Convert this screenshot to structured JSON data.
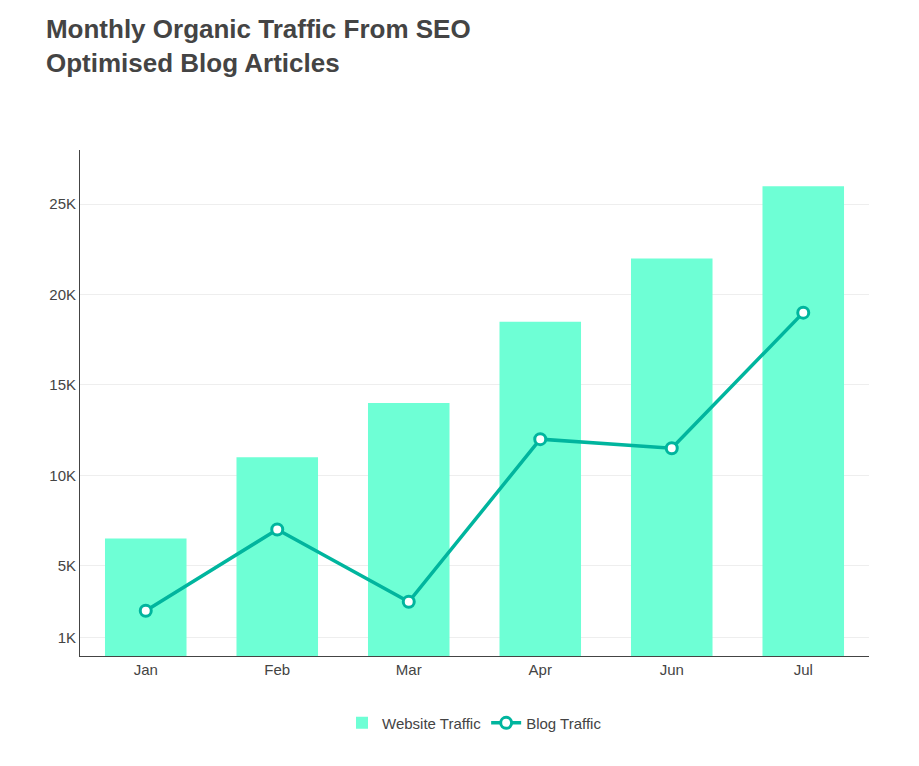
{
  "chart_data": {
    "type": "bar",
    "title": "Monthly Organic Traffic From SEO",
    "subtitle": "Optimised Blog Articles",
    "categories": [
      "Jan",
      "Feb",
      "Mar",
      "Apr",
      "Jun",
      "Jul"
    ],
    "series": [
      {
        "name": "Website Traffic",
        "type": "bar",
        "color": "#6EFFD5",
        "values": [
          6500,
          11000,
          14000,
          18500,
          22000,
          26000
        ]
      },
      {
        "name": "Blog Traffic",
        "type": "line",
        "color": "#00B59E",
        "marker": "circle",
        "values": [
          2500,
          7000,
          3000,
          12000,
          11500,
          19000
        ]
      }
    ],
    "ylim": [
      0,
      28000
    ],
    "yticks": [
      {
        "value": 1000,
        "label": "1K"
      },
      {
        "value": 5000,
        "label": "5K"
      },
      {
        "value": 10000,
        "label": "10K"
      },
      {
        "value": 15000,
        "label": "15K"
      },
      {
        "value": 20000,
        "label": "20K"
      },
      {
        "value": 25000,
        "label": "25K"
      }
    ],
    "grid": true,
    "legend": "bottom"
  }
}
